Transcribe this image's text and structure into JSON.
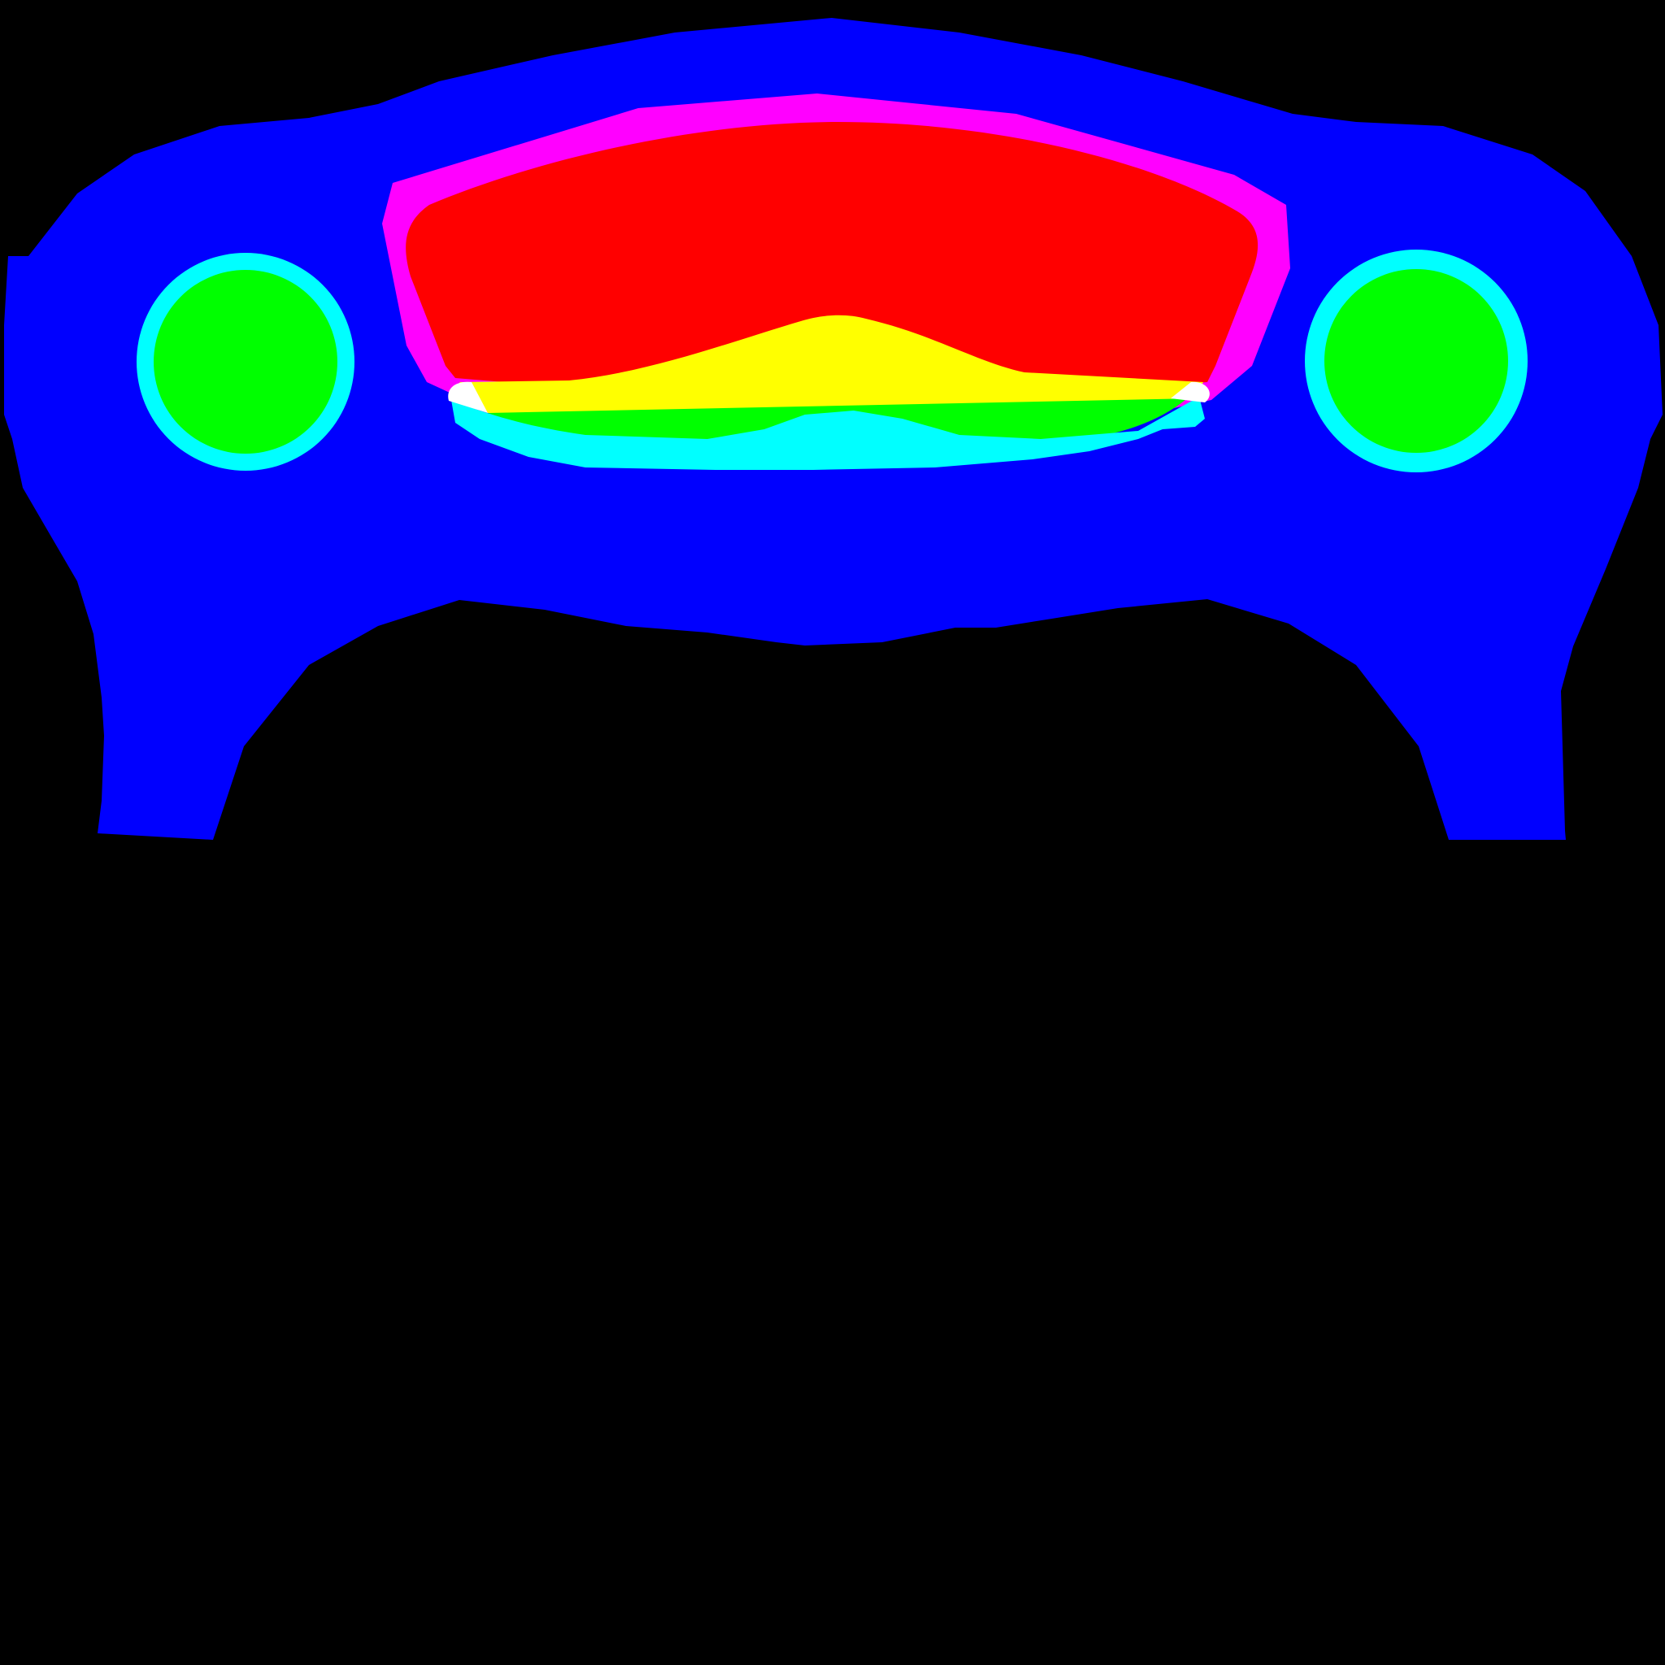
{
  "colors": {
    "background": "#000000",
    "body": "#0000ff",
    "outline_ring": "#ff00ff",
    "main_panel": "#ff0000",
    "lower_band": "#ffff00",
    "lower_fill": "#00ff00",
    "trim": "#00ffff",
    "highlight": "#ffffff",
    "gauge_ring": "#00ffff",
    "gauge_face": "#00ff00"
  },
  "regions": [
    {
      "name": "body",
      "color_key": "body"
    },
    {
      "name": "outline-ring",
      "color_key": "outline_ring"
    },
    {
      "name": "main-panel",
      "color_key": "main_panel"
    },
    {
      "name": "lower-band",
      "color_key": "lower_band"
    },
    {
      "name": "lower-fill",
      "color_key": "lower_fill"
    },
    {
      "name": "trim",
      "color_key": "trim"
    },
    {
      "name": "highlight",
      "color_key": "highlight"
    },
    {
      "name": "left-gauge",
      "color_key": "gauge_face"
    },
    {
      "name": "right-gauge",
      "color_key": "gauge_face"
    }
  ]
}
